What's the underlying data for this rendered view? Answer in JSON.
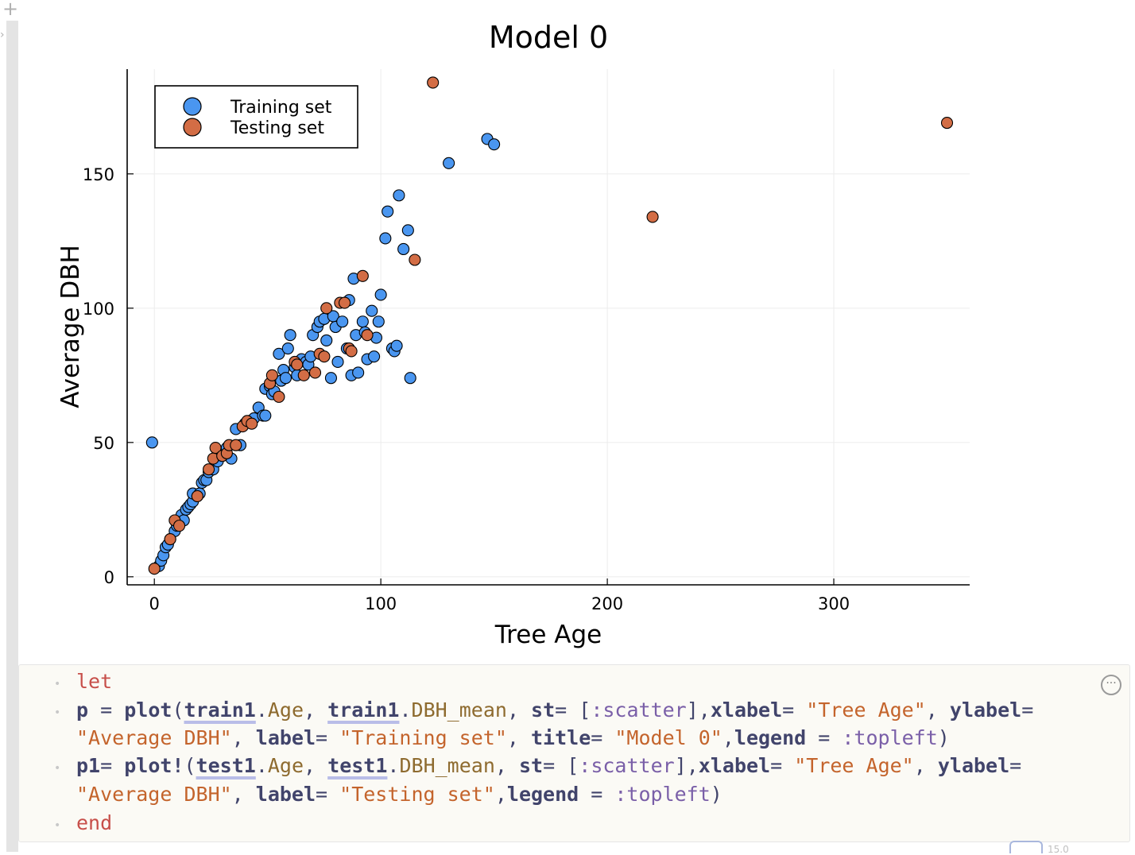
{
  "chart_data": {
    "type": "scatter",
    "title": "Model 0",
    "xlabel": "Tree Age",
    "ylabel": "Average DBH",
    "xlim": [
      -12,
      360
    ],
    "ylim": [
      -3,
      189
    ],
    "xticks": [
      "0",
      "100",
      "200",
      "300"
    ],
    "yticks": [
      "0",
      "50",
      "100",
      "150"
    ],
    "xtick_values": [
      0,
      100,
      200,
      300
    ],
    "ytick_values": [
      0,
      50,
      100,
      150
    ],
    "grid": true,
    "legend": "top-left",
    "series": [
      {
        "name": "Training set",
        "color": "#4a96f0",
        "points": [
          [
            -1,
            50
          ],
          [
            2,
            4
          ],
          [
            3,
            6
          ],
          [
            4,
            8
          ],
          [
            5,
            11
          ],
          [
            6,
            12
          ],
          [
            7,
            14
          ],
          [
            9,
            17
          ],
          [
            10,
            19
          ],
          [
            11,
            21
          ],
          [
            12,
            23
          ],
          [
            13,
            21
          ],
          [
            14,
            25
          ],
          [
            15,
            26
          ],
          [
            16,
            27
          ],
          [
            17,
            28
          ],
          [
            17,
            31
          ],
          [
            19,
            30
          ],
          [
            20,
            31
          ],
          [
            21,
            35
          ],
          [
            22,
            36
          ],
          [
            23,
            36
          ],
          [
            24,
            39
          ],
          [
            26,
            40
          ],
          [
            28,
            43
          ],
          [
            30,
            46
          ],
          [
            32,
            48
          ],
          [
            34,
            44
          ],
          [
            36,
            55
          ],
          [
            38,
            49
          ],
          [
            40,
            57
          ],
          [
            42,
            58
          ],
          [
            44,
            59
          ],
          [
            46,
            63
          ],
          [
            48,
            60
          ],
          [
            49,
            60
          ],
          [
            49,
            70
          ],
          [
            51,
            71
          ],
          [
            52,
            68
          ],
          [
            53,
            69
          ],
          [
            55,
            83
          ],
          [
            56,
            73
          ],
          [
            57,
            77
          ],
          [
            58,
            74
          ],
          [
            59,
            85
          ],
          [
            60,
            90
          ],
          [
            62,
            78
          ],
          [
            63,
            75
          ],
          [
            65,
            81
          ],
          [
            67,
            80
          ],
          [
            68,
            79
          ],
          [
            69,
            82
          ],
          [
            70,
            90
          ],
          [
            72,
            93
          ],
          [
            73,
            95
          ],
          [
            75,
            96
          ],
          [
            76,
            88
          ],
          [
            78,
            74
          ],
          [
            79,
            97
          ],
          [
            80,
            93
          ],
          [
            81,
            80
          ],
          [
            83,
            95
          ],
          [
            85,
            85
          ],
          [
            86,
            103
          ],
          [
            87,
            75
          ],
          [
            88,
            111
          ],
          [
            89,
            90
          ],
          [
            90,
            76
          ],
          [
            92,
            95
          ],
          [
            93,
            91
          ],
          [
            94,
            81
          ],
          [
            96,
            99
          ],
          [
            97,
            82
          ],
          [
            98,
            89
          ],
          [
            99,
            95
          ],
          [
            100,
            105
          ],
          [
            102,
            126
          ],
          [
            103,
            136
          ],
          [
            105,
            85
          ],
          [
            106,
            84
          ],
          [
            107,
            86
          ],
          [
            108,
            142
          ],
          [
            110,
            122
          ],
          [
            112,
            129
          ],
          [
            113,
            74
          ],
          [
            130,
            154
          ],
          [
            147,
            163
          ],
          [
            150,
            161
          ]
        ]
      },
      {
        "name": "Testing set",
        "color": "#d36d45",
        "points": [
          [
            0,
            3
          ],
          [
            7,
            14
          ],
          [
            9,
            21
          ],
          [
            11,
            19
          ],
          [
            19,
            30
          ],
          [
            24,
            40
          ],
          [
            26,
            44
          ],
          [
            27,
            48
          ],
          [
            30,
            45
          ],
          [
            32,
            46
          ],
          [
            33,
            49
          ],
          [
            36,
            49
          ],
          [
            39,
            56
          ],
          [
            41,
            58
          ],
          [
            43,
            57
          ],
          [
            51,
            72
          ],
          [
            52,
            75
          ],
          [
            55,
            67
          ],
          [
            62,
            80
          ],
          [
            63,
            79
          ],
          [
            66,
            75
          ],
          [
            71,
            76
          ],
          [
            73,
            83
          ],
          [
            75,
            82
          ],
          [
            76,
            100
          ],
          [
            82,
            102
          ],
          [
            84,
            102
          ],
          [
            86,
            85
          ],
          [
            87,
            84
          ],
          [
            92,
            112
          ],
          [
            94,
            90
          ],
          [
            115,
            118
          ],
          [
            123,
            184
          ],
          [
            220,
            134
          ],
          [
            350,
            169
          ]
        ]
      }
    ]
  },
  "code": {
    "lines": [
      [
        [
          "kw",
          "let"
        ]
      ],
      [
        [
          "fn",
          "p"
        ],
        [
          "op",
          " = "
        ],
        [
          "fn",
          "plot"
        ],
        [
          "op",
          "("
        ],
        [
          "var",
          "train1"
        ],
        [
          "op",
          "."
        ],
        [
          "fld",
          "Age"
        ],
        [
          "op",
          ", "
        ],
        [
          "var",
          "train1"
        ],
        [
          "op",
          "."
        ],
        [
          "fld",
          "DBH_mean"
        ],
        [
          "op",
          ", "
        ],
        [
          "kwarg",
          "st"
        ],
        [
          "op",
          "= ["
        ],
        [
          "sym",
          ":scatter"
        ],
        [
          "op",
          "],"
        ],
        [
          "kwarg",
          "xlabel"
        ],
        [
          "op",
          "= "
        ],
        [
          "str",
          "\"Tree Age\""
        ],
        [
          "op",
          ", "
        ],
        [
          "kwarg",
          "ylabel"
        ],
        [
          "op",
          "="
        ]
      ],
      [
        [
          "str",
          "\"Average DBH\""
        ],
        [
          "op",
          ", "
        ],
        [
          "kwarg",
          "label"
        ],
        [
          "op",
          "= "
        ],
        [
          "str",
          "\"Training set\""
        ],
        [
          "op",
          ", "
        ],
        [
          "kwarg",
          "title"
        ],
        [
          "op",
          "= "
        ],
        [
          "str",
          "\"Model 0\""
        ],
        [
          "op",
          ","
        ],
        [
          "kwarg",
          "legend"
        ],
        [
          "op",
          " = "
        ],
        [
          "sym",
          ":topleft"
        ],
        [
          "op",
          ")"
        ]
      ],
      [
        [
          "fn",
          "p1"
        ],
        [
          "op",
          "= "
        ],
        [
          "fn",
          "plot!"
        ],
        [
          "op",
          "("
        ],
        [
          "var",
          "test1"
        ],
        [
          "op",
          "."
        ],
        [
          "fld",
          "Age"
        ],
        [
          "op",
          ", "
        ],
        [
          "var",
          "test1"
        ],
        [
          "op",
          "."
        ],
        [
          "fld",
          "DBH_mean"
        ],
        [
          "op",
          ", "
        ],
        [
          "kwarg",
          "st"
        ],
        [
          "op",
          "= ["
        ],
        [
          "sym",
          ":scatter"
        ],
        [
          "op",
          "],"
        ],
        [
          "kwarg",
          "xlabel"
        ],
        [
          "op",
          "= "
        ],
        [
          "str",
          "\"Tree Age\""
        ],
        [
          "op",
          ", "
        ],
        [
          "kwarg",
          "ylabel"
        ],
        [
          "op",
          "="
        ]
      ],
      [
        [
          "str",
          "\"Average DBH\""
        ],
        [
          "op",
          ", "
        ],
        [
          "kwarg",
          "label"
        ],
        [
          "op",
          "= "
        ],
        [
          "str",
          "\"Testing set\""
        ],
        [
          "op",
          ","
        ],
        [
          "kwarg",
          "legend"
        ],
        [
          "op",
          " = "
        ],
        [
          "sym",
          ":topleft"
        ],
        [
          "op",
          ")"
        ]
      ],
      [
        [
          "kw",
          "end"
        ]
      ]
    ],
    "dotted_lines": [
      0,
      1,
      3,
      5
    ]
  },
  "bottom_text": "15.0"
}
